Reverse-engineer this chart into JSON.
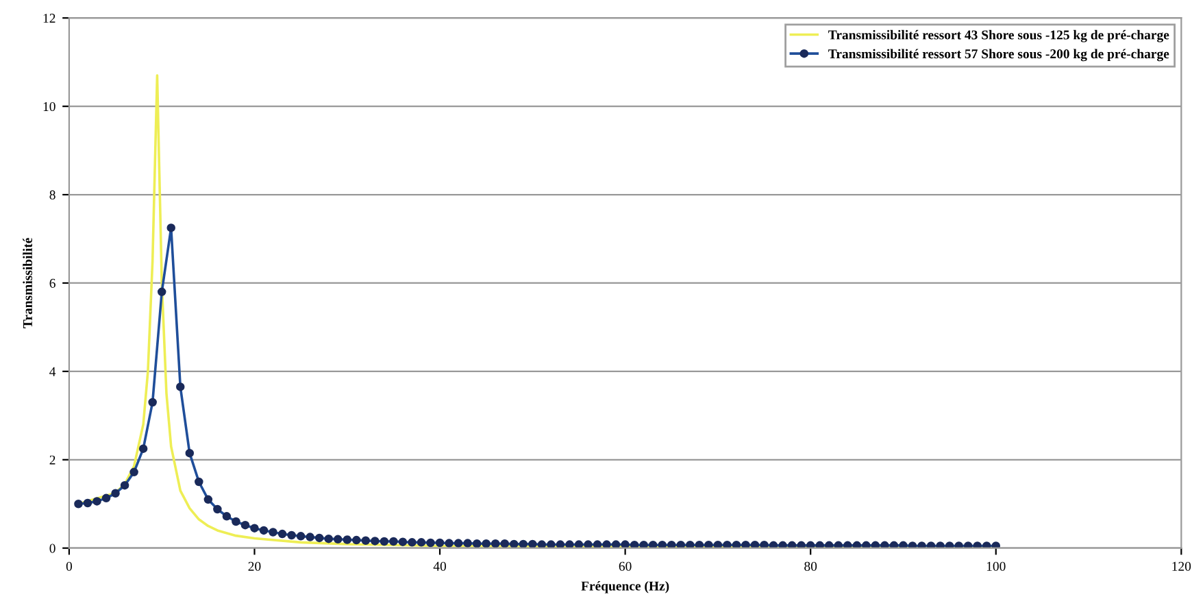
{
  "chart_data": {
    "type": "line",
    "xlabel": "Fréquence (Hz)",
    "ylabel": "Transmissibilité",
    "xlim": [
      0,
      120
    ],
    "xticks": [
      0,
      20,
      40,
      60,
      80,
      100,
      120
    ],
    "ylim": [
      0,
      12
    ],
    "yticks": [
      0,
      2,
      4,
      6,
      8,
      10,
      12
    ],
    "grid": "y",
    "legend": "top right",
    "series": [
      {
        "name": "Transmissibilité ressort 43 Shore sous -125 kg de pré-charge",
        "color": "#eeee55",
        "marker": "none",
        "x": [
          1,
          5,
          6,
          7,
          8,
          8.5,
          9,
          9.5,
          10,
          10.5,
          11,
          12,
          13,
          14,
          15,
          16,
          18,
          20,
          25,
          30,
          40,
          60,
          100
        ],
        "values": [
          1.0,
          1.25,
          1.45,
          1.85,
          2.8,
          4.0,
          6.5,
          10.7,
          6.0,
          3.5,
          2.3,
          1.3,
          0.9,
          0.65,
          0.5,
          0.4,
          0.28,
          0.22,
          0.13,
          0.09,
          0.05,
          0.03,
          0.02
        ]
      },
      {
        "name": "Transmissibilité ressort 57 Shore sous -200 kg de pré-charge",
        "color": "#1f4e9a",
        "marker": "circle",
        "x": [
          1,
          2,
          3,
          4,
          5,
          6,
          7,
          8,
          9,
          10,
          11,
          12,
          13,
          14,
          15,
          16,
          17,
          18,
          19,
          20,
          21,
          22,
          23,
          24,
          25,
          26,
          27,
          28,
          29,
          30,
          31,
          32,
          33,
          34,
          35,
          36,
          37,
          38,
          39,
          40,
          41,
          42,
          43,
          44,
          45,
          46,
          47,
          48,
          49,
          50,
          51,
          52,
          53,
          54,
          55,
          56,
          57,
          58,
          59,
          60,
          61,
          62,
          63,
          64,
          65,
          66,
          67,
          68,
          69,
          70,
          71,
          72,
          73,
          74,
          75,
          76,
          77,
          78,
          79,
          80,
          81,
          82,
          83,
          84,
          85,
          86,
          87,
          88,
          89,
          90,
          91,
          92,
          93,
          94,
          95,
          96,
          97,
          98,
          99,
          100
        ],
        "values": [
          1.0,
          1.02,
          1.06,
          1.13,
          1.24,
          1.42,
          1.72,
          2.25,
          3.3,
          5.8,
          7.25,
          3.65,
          2.15,
          1.5,
          1.1,
          0.88,
          0.72,
          0.6,
          0.52,
          0.45,
          0.4,
          0.36,
          0.32,
          0.29,
          0.27,
          0.25,
          0.23,
          0.21,
          0.2,
          0.19,
          0.18,
          0.17,
          0.16,
          0.15,
          0.15,
          0.14,
          0.13,
          0.13,
          0.12,
          0.12,
          0.11,
          0.11,
          0.11,
          0.1,
          0.1,
          0.1,
          0.1,
          0.09,
          0.09,
          0.09,
          0.08,
          0.08,
          0.08,
          0.08,
          0.08,
          0.08,
          0.08,
          0.08,
          0.08,
          0.08,
          0.07,
          0.07,
          0.07,
          0.07,
          0.07,
          0.07,
          0.07,
          0.07,
          0.07,
          0.07,
          0.07,
          0.07,
          0.07,
          0.07,
          0.07,
          0.06,
          0.06,
          0.06,
          0.06,
          0.06,
          0.06,
          0.06,
          0.06,
          0.06,
          0.06,
          0.06,
          0.06,
          0.06,
          0.06,
          0.06,
          0.05,
          0.05,
          0.05,
          0.05,
          0.05,
          0.05,
          0.05,
          0.05,
          0.05,
          0.05
        ]
      }
    ]
  }
}
